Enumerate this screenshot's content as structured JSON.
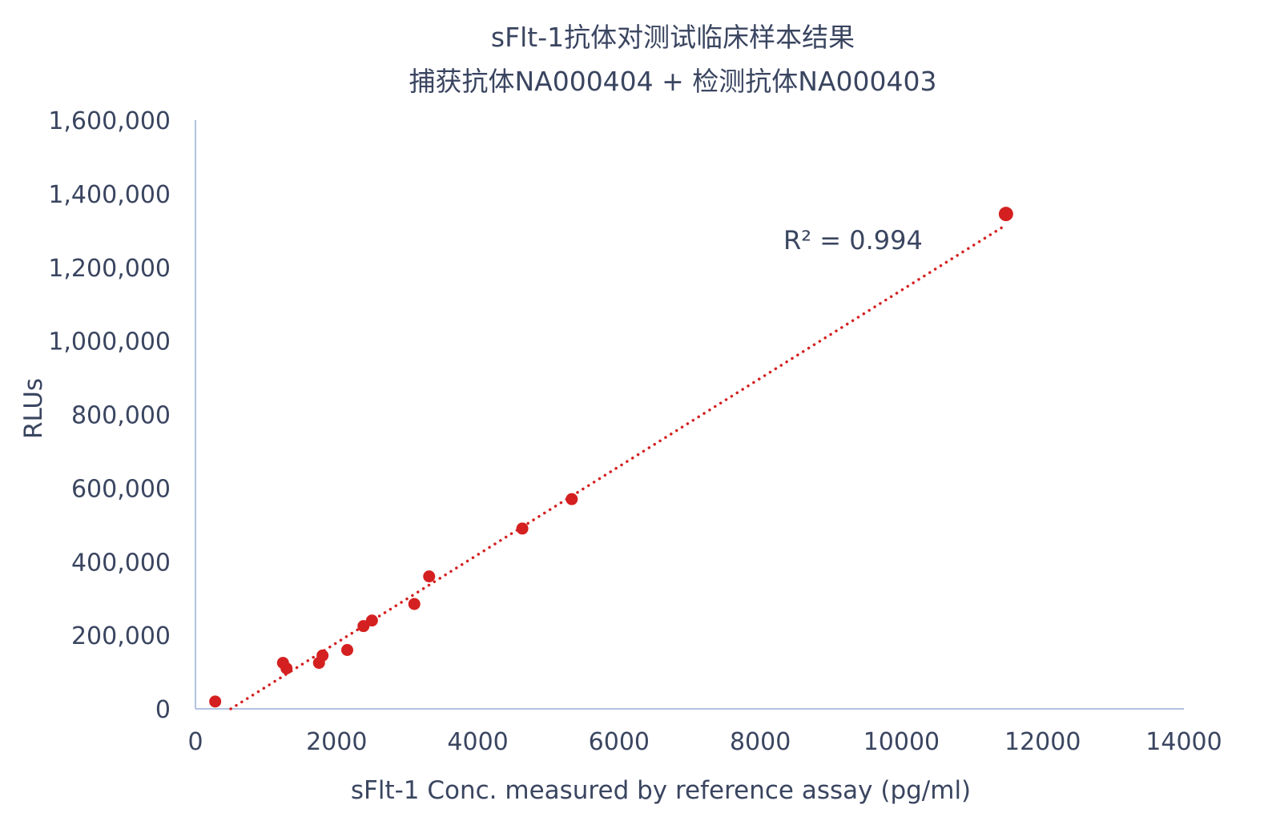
{
  "chart_data": {
    "type": "scatter",
    "title": "sFlt-1抗体对测试临床样本结果",
    "subtitle": "捕获抗体NA000404 + 检测抗体NA000403",
    "xlabel": "sFlt-1 Conc. measured by reference assay (pg/ml)",
    "ylabel": "RLUs",
    "xlim": [
      0,
      14000
    ],
    "ylim": [
      0,
      1600000
    ],
    "x_ticks": [
      0,
      2000,
      4000,
      6000,
      8000,
      10000,
      12000,
      14000
    ],
    "x_tick_labels": [
      "0",
      "2000",
      "4000",
      "6000",
      "8000",
      "10000",
      "12000",
      "14000"
    ],
    "y_ticks": [
      0,
      200000,
      400000,
      600000,
      800000,
      1000000,
      1200000,
      1400000,
      1600000
    ],
    "y_tick_labels": [
      "0",
      "200,000",
      "400,000",
      "600,000",
      "800,000",
      "1,000,000",
      "1,200,000",
      "1,400,000",
      "1,600,000"
    ],
    "grid": false,
    "series": [
      {
        "color": "#d42020",
        "x": [
          280,
          1240,
          1290,
          1750,
          1800,
          2150,
          2380,
          2500,
          3100,
          3310,
          4630,
          5330,
          11480
        ],
        "y": [
          20000,
          125000,
          110000,
          125000,
          145000,
          160000,
          225000,
          240000,
          285000,
          360000,
          490000,
          570000,
          1345000
        ]
      }
    ],
    "trendline": {
      "style": "dotted",
      "color": "#d42020",
      "x": [
        500,
        11480
      ],
      "y": [
        0,
        1315000
      ]
    },
    "annotations": [
      {
        "text": "R² = 0.994"
      }
    ],
    "colors": {
      "axis_line": "#b3c3df",
      "text": "#3a4560",
      "marker": "#d42020"
    }
  }
}
